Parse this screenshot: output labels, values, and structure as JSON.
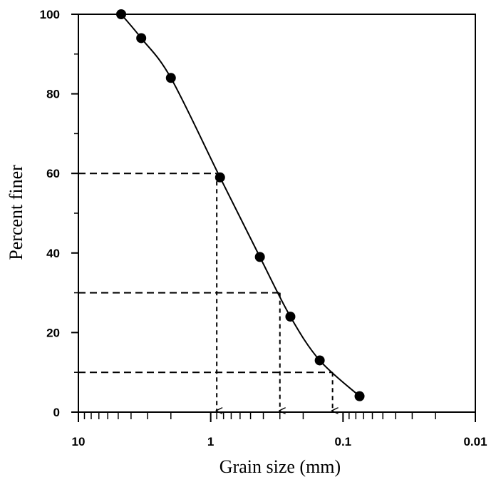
{
  "chart_data": {
    "type": "line",
    "title": "",
    "xlabel": "Grain size (mm)",
    "ylabel": "Percent finer",
    "x_scale": "log",
    "x_reversed": true,
    "xlim": [
      10,
      0.01
    ],
    "ylim": [
      0,
      100
    ],
    "x_tick_labels": [
      "10",
      "1",
      "0.1",
      "0.01"
    ],
    "y_tick_labels": [
      "0",
      "20",
      "40",
      "60",
      "80",
      "100"
    ],
    "grid": false,
    "series": [
      {
        "values": [
          {
            "x": 4.75,
            "y": 100
          },
          {
            "x": 3.35,
            "y": 94
          },
          {
            "x": 2.0,
            "y": 84
          },
          {
            "x": 0.85,
            "y": 59
          },
          {
            "x": 0.425,
            "y": 39
          },
          {
            "x": 0.25,
            "y": 24
          },
          {
            "x": 0.15,
            "y": 13
          },
          {
            "x": 0.075,
            "y": 4
          }
        ]
      }
    ],
    "reference_lines": [
      {
        "percent": 60,
        "size": 0.9
      },
      {
        "percent": 30,
        "size": 0.3
      },
      {
        "percent": 10,
        "size": 0.12
      }
    ]
  }
}
